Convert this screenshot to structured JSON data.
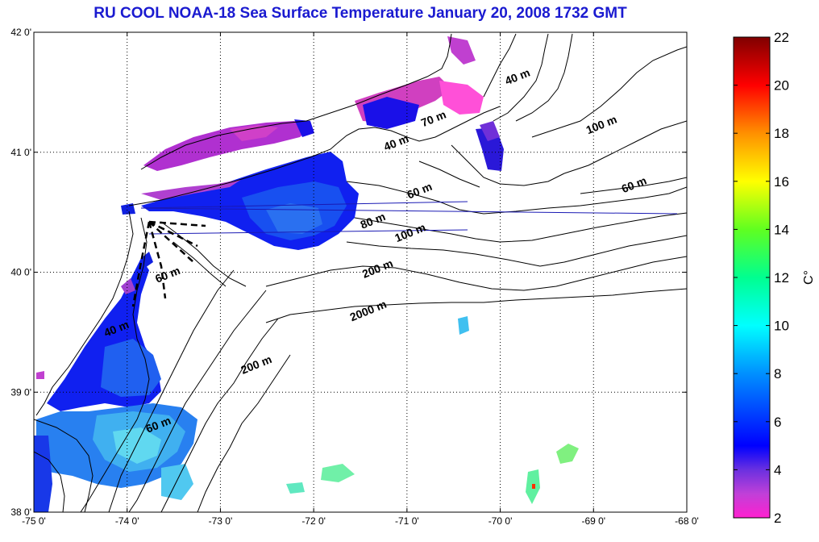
{
  "title": "RU COOL  NOAA-18 Sea Surface Temperature January 20, 2008 1732 GMT",
  "map": {
    "lon_range": [
      -75,
      -68
    ],
    "lat_range": [
      38,
      42
    ],
    "lon_ticks": [
      "-75 0'",
      "-74 0'",
      "-73 0'",
      "-72 0'",
      "-71 0'",
      "-70 0'",
      "-69 0'",
      "-68 0'"
    ],
    "lat_ticks": [
      "38 0'",
      "39 0'",
      "40 0'",
      "41 0'",
      "42 0'"
    ],
    "grid": "dotted",
    "land_color": "#ffffff",
    "coastline_color": "#000000",
    "transect_line_color": "#1a1ab4"
  },
  "contour_labels": [
    {
      "text": "40 m",
      "lon": -69.8,
      "lat": 41.6
    },
    {
      "text": "100 m",
      "lon": -68.9,
      "lat": 41.2
    },
    {
      "text": "70 m",
      "lon": -70.7,
      "lat": 41.25
    },
    {
      "text": "40 m",
      "lon": -71.1,
      "lat": 41.05
    },
    {
      "text": "60 m",
      "lon": -70.85,
      "lat": 40.65
    },
    {
      "text": "60 m",
      "lon": -68.55,
      "lat": 40.7
    },
    {
      "text": "80 m",
      "lon": -71.35,
      "lat": 40.4
    },
    {
      "text": "100 m",
      "lon": -70.95,
      "lat": 40.3
    },
    {
      "text": "200 m",
      "lon": -71.3,
      "lat": 40.0
    },
    {
      "text": "60 m",
      "lon": -73.55,
      "lat": 39.95
    },
    {
      "text": "2000 m",
      "lon": -71.4,
      "lat": 39.65
    },
    {
      "text": "200 m",
      "lon": -72.6,
      "lat": 39.2
    },
    {
      "text": "60 m",
      "lon": -73.65,
      "lat": 38.7
    },
    {
      "text": "40 m",
      "lon": -74.1,
      "lat": 39.5
    }
  ],
  "colorbar": {
    "min": 2,
    "max": 22,
    "ticks": [
      "22",
      "20",
      "18",
      "16",
      "14",
      "12",
      "10",
      "8",
      "6",
      "4",
      "2"
    ],
    "unit": "C°",
    "stops": [
      {
        "value": 2,
        "color": "#ff20d0"
      },
      {
        "value": 3,
        "color": "#c040d8"
      },
      {
        "value": 4,
        "color": "#6a30e0"
      },
      {
        "value": 5,
        "color": "#0000ff"
      },
      {
        "value": 8,
        "color": "#0090ff"
      },
      {
        "value": 10,
        "color": "#00ffff"
      },
      {
        "value": 12,
        "color": "#00ff90"
      },
      {
        "value": 14,
        "color": "#60ff20"
      },
      {
        "value": 16,
        "color": "#ffff00"
      },
      {
        "value": 18,
        "color": "#ff9000"
      },
      {
        "value": 20,
        "color": "#ff0000"
      },
      {
        "value": 22,
        "color": "#800000"
      }
    ]
  }
}
